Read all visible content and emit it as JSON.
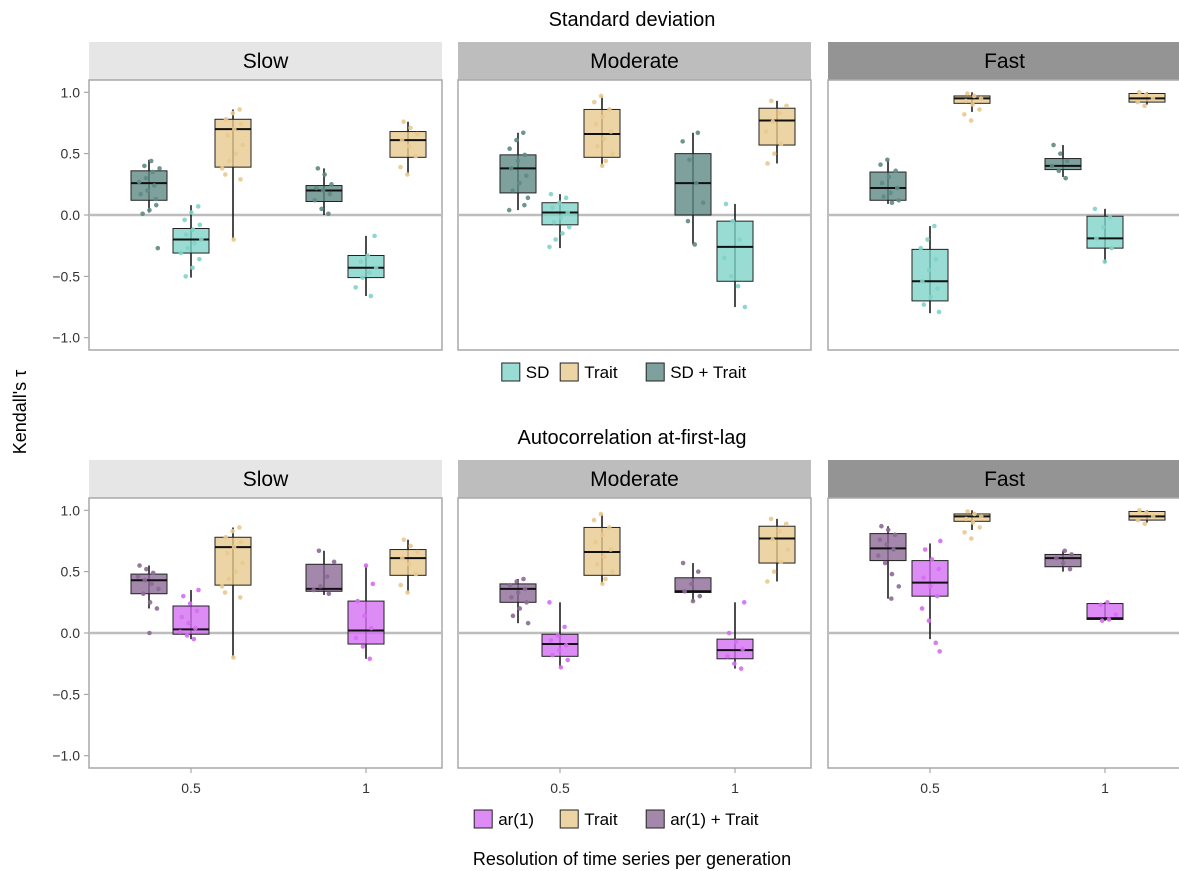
{
  "figure": {
    "ylabel": "Kendall's τ",
    "xlabel": "Resolution of time series per generation"
  },
  "colors": {
    "SD": "#7fd3c9",
    "Trait": "#e9c98f",
    "SD + Trait": "#5f8a85",
    "ar(1)": "#d46ef2",
    "ar(1) + Trait": "#8c6a96",
    "strip_slow": "#e6e6e6",
    "strip_moderate": "#bdbdbd",
    "strip_fast": "#949494",
    "zero_line": "#bdbdbd"
  },
  "chart_data": [
    {
      "type": "box",
      "title": "Standard deviation",
      "ylim": [
        -1.1,
        1.1
      ],
      "yticks": [
        1.0,
        0.5,
        0.0,
        -0.5,
        -1.0
      ],
      "ytick_labels": [
        "1.0",
        "0.5",
        "0.0",
        "−0.5",
        "−1.0"
      ],
      "x_categories": [
        "0.5",
        "1"
      ],
      "show_xticks": false,
      "legend": {
        "position": "bottom",
        "entries": [
          "SD",
          "Trait",
          "SD + Trait"
        ]
      },
      "panels": [
        {
          "label": "Slow",
          "strip_color": "#e6e6e6",
          "boxes": [
            {
              "x": "0.5",
              "series": "SD + Trait",
              "whisker_lo": 0.02,
              "q1": 0.12,
              "median": 0.26,
              "q3": 0.36,
              "whisker_hi": 0.45,
              "points": [
                0.44,
                0.4,
                0.38,
                0.35,
                0.3,
                0.27,
                0.24,
                0.2,
                0.17,
                0.13,
                0.08,
                0.04,
                0.01,
                -0.27
              ]
            },
            {
              "x": "0.5",
              "series": "SD",
              "whisker_lo": -0.51,
              "q1": -0.31,
              "median": -0.2,
              "q3": -0.11,
              "whisker_hi": 0.08,
              "points": [
                0.07,
                0.02,
                -0.04,
                -0.08,
                -0.12,
                -0.16,
                -0.2,
                -0.23,
                -0.27,
                -0.31,
                -0.36,
                -0.43,
                -0.5
              ]
            },
            {
              "x": "0.5",
              "series": "Trait",
              "whisker_lo": -0.2,
              "q1": 0.39,
              "median": 0.7,
              "q3": 0.78,
              "whisker_hi": 0.86,
              "points": [
                0.86,
                0.83,
                0.78,
                0.74,
                0.7,
                0.65,
                0.57,
                0.5,
                0.44,
                0.38,
                0.33,
                0.29,
                -0.2
              ]
            },
            {
              "x": "1",
              "series": "SD + Trait",
              "whisker_lo": 0.0,
              "q1": 0.11,
              "median": 0.2,
              "q3": 0.24,
              "whisker_hi": 0.38,
              "points": [
                0.38,
                0.33,
                0.25,
                0.22,
                0.2,
                0.17,
                0.12,
                0.05,
                0.01
              ]
            },
            {
              "x": "1",
              "series": "SD",
              "whisker_lo": -0.66,
              "q1": -0.51,
              "median": -0.43,
              "q3": -0.33,
              "whisker_hi": -0.17,
              "points": [
                -0.17,
                -0.33,
                -0.38,
                -0.43,
                -0.47,
                -0.51,
                -0.59,
                -0.66
              ]
            },
            {
              "x": "1",
              "series": "Trait",
              "whisker_lo": 0.33,
              "q1": 0.47,
              "median": 0.61,
              "q3": 0.68,
              "whisker_hi": 0.76,
              "points": [
                0.76,
                0.71,
                0.66,
                0.61,
                0.56,
                0.48,
                0.39,
                0.33
              ]
            }
          ]
        },
        {
          "label": "Moderate",
          "strip_color": "#bdbdbd",
          "boxes": [
            {
              "x": "0.5",
              "series": "SD + Trait",
              "whisker_lo": 0.04,
              "q1": 0.18,
              "median": 0.38,
              "q3": 0.49,
              "whisker_hi": 0.67,
              "points": [
                0.67,
                0.61,
                0.54,
                0.49,
                0.44,
                0.38,
                0.32,
                0.26,
                0.2,
                0.14,
                0.08,
                0.04
              ]
            },
            {
              "x": "0.5",
              "series": "SD",
              "whisker_lo": -0.27,
              "q1": -0.08,
              "median": 0.02,
              "q3": 0.1,
              "whisker_hi": 0.17,
              "points": [
                0.17,
                0.14,
                0.1,
                0.06,
                0.02,
                -0.02,
                -0.06,
                -0.1,
                -0.15,
                -0.2,
                -0.26
              ]
            },
            {
              "x": "0.5",
              "series": "Trait",
              "whisker_lo": 0.4,
              "q1": 0.47,
              "median": 0.66,
              "q3": 0.86,
              "whisker_hi": 0.97,
              "points": [
                0.97,
                0.92,
                0.86,
                0.8,
                0.74,
                0.68,
                0.62,
                0.56,
                0.5,
                0.44,
                0.4
              ]
            },
            {
              "x": "1",
              "series": "SD + Trait",
              "whisker_lo": -0.24,
              "q1": 0.0,
              "median": 0.26,
              "q3": 0.5,
              "whisker_hi": 0.67,
              "points": [
                0.67,
                0.6,
                0.45,
                0.26,
                0.1,
                -0.05,
                -0.24
              ]
            },
            {
              "x": "1",
              "series": "SD",
              "whisker_lo": -0.75,
              "q1": -0.54,
              "median": -0.26,
              "q3": -0.05,
              "whisker_hi": 0.09,
              "points": [
                0.09,
                -0.05,
                -0.2,
                -0.35,
                -0.5,
                -0.58,
                -0.75
              ]
            },
            {
              "x": "1",
              "series": "Trait",
              "whisker_lo": 0.42,
              "q1": 0.57,
              "median": 0.77,
              "q3": 0.87,
              "whisker_hi": 0.93,
              "points": [
                0.93,
                0.89,
                0.83,
                0.76,
                0.68,
                0.58,
                0.5,
                0.42
              ]
            }
          ]
        },
        {
          "label": "Fast",
          "strip_color": "#949494",
          "boxes": [
            {
              "x": "0.5",
              "series": "SD + Trait",
              "whisker_lo": 0.09,
              "q1": 0.12,
              "median": 0.22,
              "q3": 0.35,
              "whisker_hi": 0.45,
              "points": [
                0.45,
                0.41,
                0.36,
                0.31,
                0.26,
                0.22,
                0.18,
                0.15,
                0.12,
                0.1
              ]
            },
            {
              "x": "0.5",
              "series": "SD",
              "whisker_lo": -0.8,
              "q1": -0.7,
              "median": -0.54,
              "q3": -0.28,
              "whisker_hi": -0.09,
              "points": [
                -0.09,
                -0.2,
                -0.27,
                -0.36,
                -0.45,
                -0.54,
                -0.6,
                -0.67,
                -0.73,
                -0.79
              ]
            },
            {
              "x": "0.5",
              "series": "Trait",
              "whisker_lo": 0.84,
              "q1": 0.91,
              "median": 0.95,
              "q3": 0.97,
              "whisker_hi": 1.0,
              "points": [
                0.99,
                0.97,
                0.95,
                0.93,
                0.9,
                0.86,
                0.82,
                0.77
              ]
            },
            {
              "x": "1",
              "series": "SD + Trait",
              "whisker_lo": 0.31,
              "q1": 0.37,
              "median": 0.4,
              "q3": 0.46,
              "whisker_hi": 0.57,
              "points": [
                0.57,
                0.5,
                0.44,
                0.4,
                0.36,
                0.3
              ]
            },
            {
              "x": "1",
              "series": "SD",
              "whisker_lo": -0.39,
              "q1": -0.27,
              "median": -0.19,
              "q3": -0.01,
              "whisker_hi": 0.05,
              "points": [
                0.05,
                -0.02,
                -0.1,
                -0.19,
                -0.27,
                -0.38
              ]
            },
            {
              "x": "1",
              "series": "Trait",
              "whisker_lo": 0.9,
              "q1": 0.92,
              "median": 0.95,
              "q3": 0.99,
              "whisker_hi": 1.0,
              "points": [
                1.0,
                0.98,
                0.95,
                0.92,
                0.89
              ]
            }
          ]
        }
      ]
    },
    {
      "type": "box",
      "title": "Autocorrelation at-first-lag",
      "ylim": [
        -1.1,
        1.1
      ],
      "yticks": [
        1.0,
        0.5,
        0.0,
        -0.5,
        -1.0
      ],
      "ytick_labels": [
        "1.0",
        "0.5",
        "0.0",
        "−0.5",
        "−1.0"
      ],
      "x_categories": [
        "0.5",
        "1"
      ],
      "show_xticks": true,
      "legend": {
        "position": "bottom",
        "entries": [
          "ar(1)",
          "Trait",
          "ar(1) + Trait"
        ]
      },
      "panels": [
        {
          "label": "Slow",
          "strip_color": "#e6e6e6",
          "boxes": [
            {
              "x": "0.5",
              "series": "ar(1) + Trait",
              "whisker_lo": 0.2,
              "q1": 0.32,
              "median": 0.43,
              "q3": 0.48,
              "whisker_hi": 0.55,
              "points": [
                0.55,
                0.52,
                0.49,
                0.46,
                0.43,
                0.4,
                0.36,
                0.32,
                0.25,
                0.2,
                0.0
              ]
            },
            {
              "x": "0.5",
              "series": "ar(1)",
              "whisker_lo": -0.05,
              "q1": -0.01,
              "median": 0.03,
              "q3": 0.22,
              "whisker_hi": 0.35,
              "points": [
                0.35,
                0.3,
                0.24,
                0.18,
                0.13,
                0.08,
                0.04,
                0.01,
                -0.02,
                -0.05
              ]
            },
            {
              "x": "0.5",
              "series": "Trait",
              "whisker_lo": -0.2,
              "q1": 0.39,
              "median": 0.7,
              "q3": 0.78,
              "whisker_hi": 0.86,
              "points": [
                0.86,
                0.83,
                0.78,
                0.74,
                0.7,
                0.65,
                0.57,
                0.5,
                0.44,
                0.38,
                0.33,
                0.29,
                -0.2
              ]
            },
            {
              "x": "1",
              "series": "ar(1) + Trait",
              "whisker_lo": 0.31,
              "q1": 0.34,
              "median": 0.36,
              "q3": 0.56,
              "whisker_hi": 0.67,
              "points": [
                0.67,
                0.58,
                0.46,
                0.38,
                0.35,
                0.32
              ]
            },
            {
              "x": "1",
              "series": "ar(1)",
              "whisker_lo": -0.21,
              "q1": -0.09,
              "median": 0.02,
              "q3": 0.26,
              "whisker_hi": 0.55,
              "points": [
                0.55,
                0.4,
                0.26,
                0.14,
                0.04,
                -0.04,
                -0.11,
                -0.21
              ]
            },
            {
              "x": "1",
              "series": "Trait",
              "whisker_lo": 0.33,
              "q1": 0.47,
              "median": 0.61,
              "q3": 0.68,
              "whisker_hi": 0.76,
              "points": [
                0.76,
                0.71,
                0.66,
                0.61,
                0.56,
                0.48,
                0.39,
                0.33
              ]
            }
          ]
        },
        {
          "label": "Moderate",
          "strip_color": "#bdbdbd",
          "boxes": [
            {
              "x": "0.5",
              "series": "ar(1) + Trait",
              "whisker_lo": 0.08,
              "q1": 0.25,
              "median": 0.36,
              "q3": 0.4,
              "whisker_hi": 0.44,
              "points": [
                0.44,
                0.42,
                0.39,
                0.36,
                0.33,
                0.29,
                0.25,
                0.2,
                0.14,
                0.08
              ]
            },
            {
              "x": "0.5",
              "series": "ar(1)",
              "whisker_lo": -0.28,
              "q1": -0.19,
              "median": -0.09,
              "q3": -0.01,
              "whisker_hi": 0.25,
              "points": [
                0.25,
                0.05,
                -0.02,
                -0.06,
                -0.1,
                -0.14,
                -0.18,
                -0.22,
                -0.28
              ]
            },
            {
              "x": "0.5",
              "series": "Trait",
              "whisker_lo": 0.4,
              "q1": 0.47,
              "median": 0.66,
              "q3": 0.86,
              "whisker_hi": 0.97,
              "points": [
                0.97,
                0.92,
                0.86,
                0.8,
                0.74,
                0.68,
                0.62,
                0.56,
                0.5,
                0.44,
                0.4
              ]
            },
            {
              "x": "1",
              "series": "ar(1) + Trait",
              "whisker_lo": 0.26,
              "q1": 0.33,
              "median": 0.34,
              "q3": 0.45,
              "whisker_hi": 0.57,
              "points": [
                0.57,
                0.5,
                0.4,
                0.34,
                0.3,
                0.26
              ]
            },
            {
              "x": "1",
              "series": "ar(1)",
              "whisker_lo": -0.29,
              "q1": -0.21,
              "median": -0.14,
              "q3": -0.05,
              "whisker_hi": 0.25,
              "points": [
                0.25,
                0.0,
                -0.07,
                -0.13,
                -0.19,
                -0.25,
                -0.29
              ]
            },
            {
              "x": "1",
              "series": "Trait",
              "whisker_lo": 0.42,
              "q1": 0.57,
              "median": 0.77,
              "q3": 0.87,
              "whisker_hi": 0.93,
              "points": [
                0.93,
                0.89,
                0.83,
                0.76,
                0.68,
                0.58,
                0.5,
                0.42
              ]
            }
          ]
        },
        {
          "label": "Fast",
          "strip_color": "#949494",
          "boxes": [
            {
              "x": "0.5",
              "series": "ar(1) + Trait",
              "whisker_lo": 0.28,
              "q1": 0.59,
              "median": 0.69,
              "q3": 0.81,
              "whisker_hi": 0.87,
              "points": [
                0.87,
                0.84,
                0.8,
                0.76,
                0.72,
                0.68,
                0.63,
                0.57,
                0.48,
                0.38,
                0.28
              ]
            },
            {
              "x": "0.5",
              "series": "ar(1)",
              "whisker_lo": -0.05,
              "q1": 0.3,
              "median": 0.41,
              "q3": 0.59,
              "whisker_hi": 0.73,
              "points": [
                0.75,
                0.68,
                0.6,
                0.52,
                0.45,
                0.38,
                0.3,
                0.2,
                0.1,
                -0.08,
                -0.15
              ]
            },
            {
              "x": "0.5",
              "series": "Trait",
              "whisker_lo": 0.84,
              "q1": 0.91,
              "median": 0.95,
              "q3": 0.97,
              "whisker_hi": 1.0,
              "points": [
                0.99,
                0.97,
                0.95,
                0.93,
                0.9,
                0.86,
                0.82,
                0.77
              ]
            },
            {
              "x": "1",
              "series": "ar(1) + Trait",
              "whisker_lo": 0.5,
              "q1": 0.54,
              "median": 0.61,
              "q3": 0.64,
              "whisker_hi": 0.67,
              "points": [
                0.67,
                0.64,
                0.61,
                0.57,
                0.52
              ]
            },
            {
              "x": "1",
              "series": "ar(1)",
              "whisker_lo": 0.1,
              "q1": 0.11,
              "median": 0.12,
              "q3": 0.24,
              "whisker_hi": 0.25,
              "points": [
                0.25,
                0.23,
                0.15,
                0.11,
                0.1
              ]
            },
            {
              "x": "1",
              "series": "Trait",
              "whisker_lo": 0.9,
              "q1": 0.92,
              "median": 0.95,
              "q3": 0.99,
              "whisker_hi": 1.0,
              "points": [
                1.0,
                0.98,
                0.95,
                0.92,
                0.89
              ]
            }
          ]
        }
      ]
    }
  ]
}
